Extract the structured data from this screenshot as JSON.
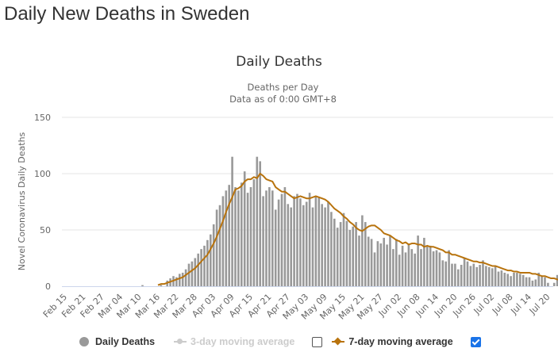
{
  "page": {
    "title": "Daily New Deaths in Sweden"
  },
  "chart_data": {
    "type": "bar",
    "title": "Daily Deaths",
    "subtitle_lines": [
      "Deaths per Day",
      "Data as of 0:00 GMT+8"
    ],
    "xlabel": "",
    "ylabel": "Novel Coronavirus Daily Deaths",
    "ylim": [
      0,
      150
    ],
    "yticks": [
      0,
      50,
      100,
      150
    ],
    "grid": true,
    "legend_position": "bottom",
    "x_start": "Feb 15",
    "x_tick_labels": [
      "Feb 15",
      "Feb 21",
      "Feb 27",
      "Mar 04",
      "Mar 10",
      "Mar 16",
      "Mar 22",
      "Mar 28",
      "Apr 03",
      "Apr 09",
      "Apr 15",
      "Apr 21",
      "Apr 27",
      "May 03",
      "May 09",
      "May 15",
      "May 21",
      "May 27",
      "Jun 02",
      "Jun 08",
      "Jun 14",
      "Jun 20",
      "Jun 26",
      "Jul 02",
      "Jul 08",
      "Jul 14",
      "Jul 20"
    ],
    "x_tick_every_days": 6,
    "series": [
      {
        "name": "Daily Deaths",
        "kind": "bar",
        "color": "#999999",
        "visible": true,
        "start_day_index": 0,
        "values": [
          0,
          0,
          0,
          0,
          0,
          0,
          0,
          0,
          0,
          0,
          0,
          0,
          0,
          0,
          0,
          0,
          0,
          0,
          0,
          0,
          0,
          0,
          0,
          0,
          0,
          1,
          0,
          0,
          0,
          0,
          0,
          1,
          0,
          5,
          7,
          9,
          8,
          11,
          12,
          15,
          20,
          22,
          25,
          29,
          33,
          36,
          41,
          46,
          55,
          68,
          72,
          80,
          85,
          90,
          115,
          88,
          85,
          92,
          102,
          83,
          88,
          95,
          115,
          111,
          80,
          85,
          88,
          85,
          68,
          77,
          82,
          88,
          73,
          70,
          80,
          82,
          78,
          72,
          75,
          83,
          70,
          80,
          79,
          73,
          70,
          75,
          66,
          60,
          52,
          57,
          65,
          58,
          50,
          53,
          57,
          45,
          63,
          57,
          44,
          42,
          30,
          40,
          38,
          43,
          37,
          45,
          33,
          42,
          28,
          36,
          30,
          37,
          33,
          29,
          45,
          33,
          43,
          36,
          36,
          31,
          32,
          30,
          23,
          22,
          32,
          20,
          20,
          15,
          19,
          25,
          22,
          18,
          20,
          17,
          19,
          23,
          18,
          17,
          16,
          18,
          13,
          14,
          12,
          11,
          9,
          12,
          12,
          11,
          10,
          8,
          8,
          5,
          6,
          12,
          9,
          8,
          3,
          0,
          3,
          10
        ]
      },
      {
        "name": "3-day moving average",
        "kind": "line",
        "color": "#cccccc",
        "visible": false,
        "checkbox_checked": false
      },
      {
        "name": "7-day moving average",
        "kind": "line",
        "color": "#b8730d",
        "visible": true,
        "checkbox_checked": true,
        "start_day_index": 30,
        "values": [
          1,
          2,
          2,
          3,
          4,
          5,
          6,
          7,
          8,
          10,
          12,
          14,
          16,
          19,
          22,
          25,
          28,
          33,
          38,
          44,
          51,
          58,
          66,
          73,
          79,
          86,
          87,
          89,
          93,
          95,
          95,
          97,
          96,
          100,
          98,
          95,
          94,
          93,
          88,
          86,
          84,
          84,
          82,
          80,
          78,
          79,
          80,
          79,
          78,
          78,
          79,
          80,
          79,
          78,
          77,
          75,
          72,
          69,
          67,
          65,
          62,
          60,
          57,
          55,
          52,
          50,
          49,
          51,
          53,
          54,
          54,
          52,
          50,
          47,
          46,
          45,
          43,
          41,
          40,
          38,
          39,
          37,
          38,
          38,
          37,
          37,
          35,
          36,
          35,
          35,
          34,
          33,
          32,
          30,
          30,
          28,
          28,
          27,
          26,
          25,
          24,
          23,
          22,
          22,
          21,
          21,
          20,
          19,
          18,
          18,
          17,
          16,
          15,
          14,
          14,
          13,
          13,
          12,
          12,
          12,
          12,
          11,
          11,
          10,
          9,
          9,
          8,
          7,
          7,
          6,
          6,
          6,
          5,
          5,
          5,
          5,
          4
        ]
      }
    ]
  },
  "legend": {
    "items": [
      {
        "label": "Daily Deaths",
        "icon": "circle-marker",
        "color": "#999999",
        "active": true
      },
      {
        "label": "3-day moving average",
        "icon": "line-circle-marker",
        "color": "#cccccc",
        "active": false
      },
      {
        "label": "7-day moving average",
        "icon": "line-diamond-marker",
        "color": "#b8730d",
        "active": true
      }
    ]
  }
}
